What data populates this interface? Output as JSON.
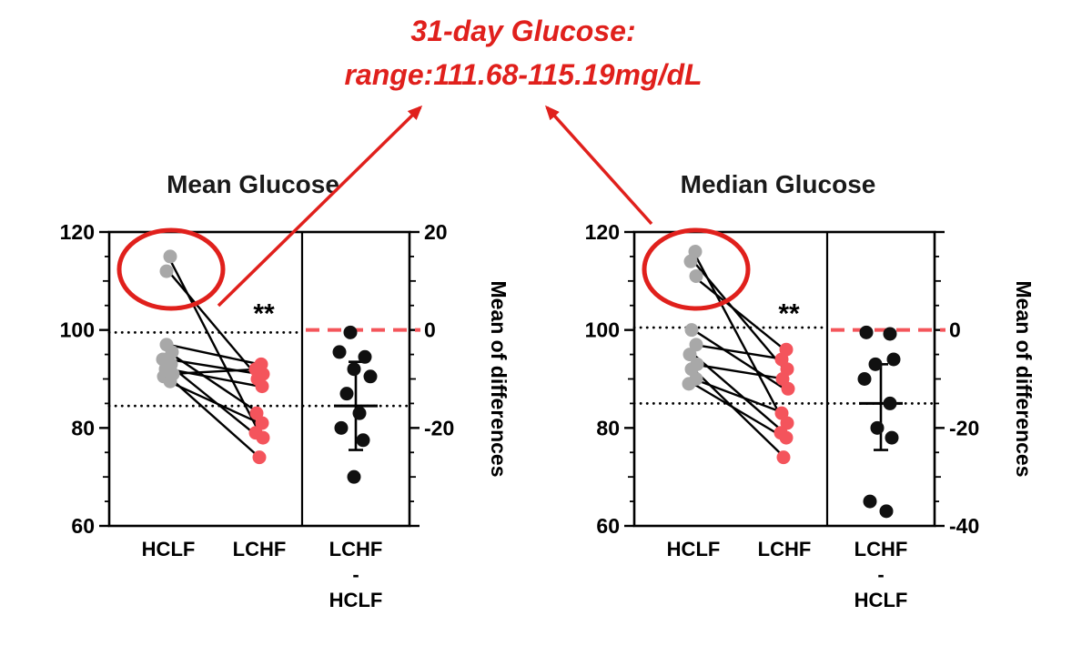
{
  "annotation": {
    "line1": "31-day Glucose:",
    "line2": "range:111.68-115.19mg/dL",
    "color": "#e0201c"
  },
  "colors": {
    "hclf": "#a8a8a8",
    "lchf": "#f4545c",
    "diff": "#101010",
    "accent_red": "#e0201c",
    "zero_line_red": "#f4555a",
    "axis": "#000000"
  },
  "chart_data": [
    {
      "type": "scatter",
      "subtype": "paired-estimation-plot",
      "title": "Mean Glucose",
      "groups": [
        "HCLF",
        "LCHF"
      ],
      "diff_column_label": [
        "LCHF",
        "-",
        "HCLF"
      ],
      "left_axis": {
        "min": 60,
        "max": 120,
        "major_ticks": [
          60,
          80,
          100,
          120
        ]
      },
      "right_axis": {
        "label": "Mean of differences",
        "min": -40,
        "max": 20,
        "labeled_ticks": [
          20,
          0,
          -20
        ]
      },
      "group_means_dotted": [
        99.5,
        84.5
      ],
      "zero_line": 0,
      "significance": "**",
      "circled": true,
      "hclf_points": [
        [
          115,
          2
        ],
        [
          112,
          -2
        ],
        [
          97,
          -2
        ],
        [
          95.5,
          4
        ],
        [
          94,
          -6
        ],
        [
          93,
          3
        ],
        [
          92,
          -3
        ],
        [
          91,
          5
        ],
        [
          90.5,
          -5
        ],
        [
          89.5,
          2
        ]
      ],
      "lchf_points": [
        [
          93,
          2
        ],
        [
          92,
          -4
        ],
        [
          91,
          4
        ],
        [
          90,
          -2
        ],
        [
          88.5,
          3
        ],
        [
          83,
          -3
        ],
        [
          81,
          3
        ],
        [
          79,
          -4
        ],
        [
          78,
          4
        ],
        [
          74,
          0
        ]
      ],
      "pairs": [
        [
          115,
          79
        ],
        [
          112,
          90
        ],
        [
          97,
          93
        ],
        [
          95.5,
          83
        ],
        [
          94,
          91
        ],
        [
          93,
          78
        ],
        [
          92,
          88.5
        ],
        [
          91,
          92
        ],
        [
          90.5,
          74
        ],
        [
          89.5,
          81
        ]
      ],
      "differences": [
        [
          -0.5,
          -6
        ],
        [
          -4.5,
          -18
        ],
        [
          -5.5,
          10
        ],
        [
          -8,
          -2
        ],
        [
          -9.5,
          16
        ],
        [
          -13,
          -10
        ],
        [
          -17,
          4
        ],
        [
          -20,
          -16
        ],
        [
          -22.5,
          8
        ],
        [
          -30,
          -2
        ]
      ],
      "mean_of_differences": {
        "mean": -15.5,
        "err_low": -24.5,
        "err_high": -6.5
      }
    },
    {
      "type": "scatter",
      "subtype": "paired-estimation-plot",
      "title": "Median Glucose",
      "groups": [
        "HCLF",
        "LCHF"
      ],
      "diff_column_label": [
        "LCHF",
        "-",
        "HCLF"
      ],
      "left_axis": {
        "min": 60,
        "max": 120,
        "major_ticks": [
          60,
          80,
          100,
          120
        ]
      },
      "right_axis": {
        "label": "Mean of differences",
        "min": -40,
        "max": 20,
        "labeled_ticks": [
          0,
          -20,
          -40
        ]
      },
      "group_means_dotted": [
        100.5,
        85
      ],
      "zero_line": 0,
      "significance": "**",
      "circled": true,
      "hclf_points": [
        [
          116,
          2
        ],
        [
          114,
          -3
        ],
        [
          111,
          3
        ],
        [
          100,
          -2
        ],
        [
          97,
          3
        ],
        [
          95,
          -4
        ],
        [
          93,
          4
        ],
        [
          92,
          -2
        ],
        [
          90,
          3
        ],
        [
          89,
          -5
        ]
      ],
      "lchf_points": [
        [
          96,
          2
        ],
        [
          94,
          -3
        ],
        [
          92,
          3
        ],
        [
          90,
          -2
        ],
        [
          88,
          4
        ],
        [
          83,
          -3
        ],
        [
          81,
          3
        ],
        [
          79,
          -4
        ],
        [
          78,
          2
        ],
        [
          74,
          -1
        ]
      ],
      "pairs": [
        [
          116,
          81
        ],
        [
          114,
          92
        ],
        [
          111,
          96
        ],
        [
          100,
          88
        ],
        [
          97,
          94
        ],
        [
          95,
          79
        ],
        [
          93,
          90
        ],
        [
          92,
          74
        ],
        [
          90,
          83
        ],
        [
          89,
          78
        ]
      ],
      "differences": [
        [
          -0.5,
          -16
        ],
        [
          -0.8,
          10
        ],
        [
          -6,
          14
        ],
        [
          -7,
          -6
        ],
        [
          -10,
          -18
        ],
        [
          -15,
          10
        ],
        [
          -20,
          -4
        ],
        [
          -22,
          12
        ],
        [
          -35,
          -12
        ],
        [
          -37,
          6
        ]
      ],
      "mean_of_differences": {
        "mean": -15,
        "err_low": -24.5,
        "err_high": -7
      }
    }
  ]
}
